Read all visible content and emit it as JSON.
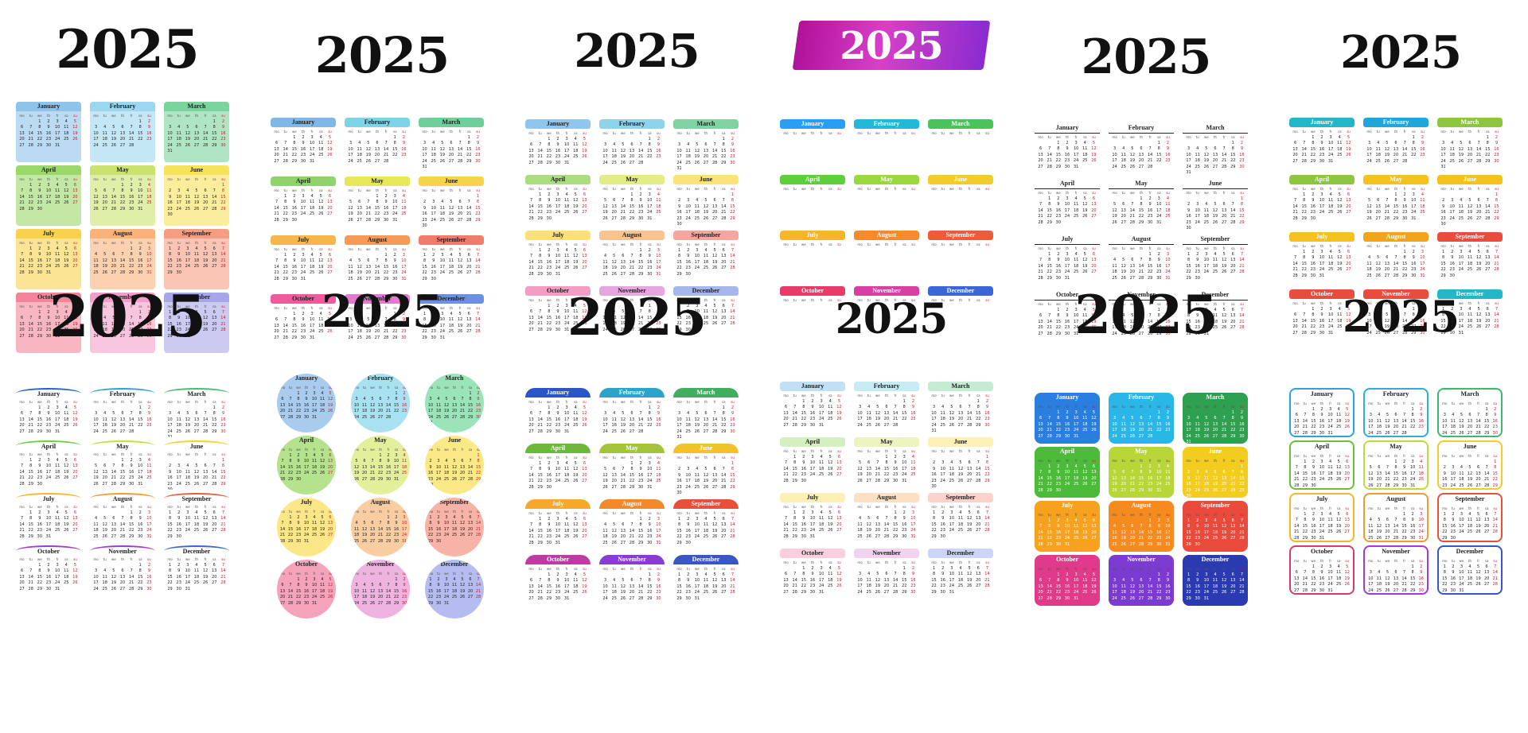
{
  "year": "2025",
  "months": [
    "January",
    "February",
    "March",
    "April",
    "May",
    "June",
    "July",
    "August",
    "September",
    "October",
    "November",
    "December"
  ],
  "weekdays": [
    "mo",
    "tu",
    "we",
    "th",
    "fr",
    "sa",
    "su"
  ],
  "variants": [
    {
      "id": "v1",
      "style": "filled",
      "colors": [
        "#8ec3ea",
        "#9bd7ef",
        "#7bd39d",
        "#9bd86a",
        "#c9e36e",
        "#f7e35a",
        "#f9d24d",
        "#f9b27a",
        "#f59d80",
        "#f2859a",
        "#f39ec8",
        "#a8a6e8"
      ]
    },
    {
      "id": "v2",
      "style": "tabbed",
      "colors": [
        "#7fb8e6",
        "#7fd3e6",
        "#6fcf9b",
        "#8fd36a",
        "#e6e857",
        "#f6d34b",
        "#f5b64c",
        "#f59a57",
        "#f17c6d",
        "#ee5a9b",
        "#e27bd0",
        "#6f8fe0"
      ]
    },
    {
      "id": "v3",
      "style": "brush",
      "colors": [
        "#8fc6ee",
        "#8fd3ea",
        "#7fd3a3",
        "#a9dd7e",
        "#e3ec85",
        "#fae37a",
        "#fbe07a",
        "#f8c38e",
        "#f6a6a0",
        "#f39cc4",
        "#e8a6e0",
        "#a7b6ee"
      ]
    },
    {
      "id": "v4",
      "style": "paint",
      "colors": [
        "#2a9df4",
        "#22b8d8",
        "#4cc35a",
        "#5dcf3a",
        "#9ad83d",
        "#f2cc2b",
        "#f7b627",
        "#f58a2f",
        "#ef5a3a",
        "#ea3a6a",
        "#d83fa0",
        "#3a66d8"
      ]
    },
    {
      "id": "v5",
      "style": "plain",
      "colors": [
        "#222222",
        "#222222",
        "#222222",
        "#222222",
        "#222222",
        "#222222",
        "#222222",
        "#222222",
        "#222222",
        "#222222",
        "#222222",
        "#222222"
      ]
    },
    {
      "id": "v6",
      "style": "banner",
      "colors": [
        "#22b6c8",
        "#22a5d8",
        "#8cc63e",
        "#8cc63e",
        "#f5c11e",
        "#f5c11e",
        "#f5c11e",
        "#f0a51e",
        "#e84c3c",
        "#e84c3c",
        "#e84c3c",
        "#22b6c8"
      ]
    },
    {
      "id": "v7",
      "style": "arc",
      "colors": [
        "#2a5fd8",
        "#2aa4d8",
        "#3fbf6f",
        "#6fcf3a",
        "#c7dd3a",
        "#f2d32b",
        "#f6b62b",
        "#f29a2b",
        "#ee5a3a",
        "#a03ad8",
        "#a03ad8",
        "#3a66d8"
      ]
    },
    {
      "id": "v8",
      "style": "circle",
      "colors": [
        "#a8cbee",
        "#a8e1ef",
        "#9be3b9",
        "#b5e28d",
        "#e3ef9a",
        "#fbe986",
        "#fbe788",
        "#f9cda2",
        "#f7b3a6",
        "#f5a3bb",
        "#eeb3df",
        "#b5bdf0"
      ]
    },
    {
      "id": "v9",
      "style": "dome",
      "colors": [
        "#2a55c8",
        "#2aa5c8",
        "#3fae5f",
        "#6bb83a",
        "#a3c43a",
        "#f2c22b",
        "#f5a82b",
        "#f28a2b",
        "#e8503a",
        "#c03aa3",
        "#8a3ad8",
        "#3a55c8"
      ]
    },
    {
      "id": "v10",
      "style": "pastel-strip",
      "colors": [
        "#bfe0f5",
        "#c7ebf3",
        "#c3ecd2",
        "#d6efc0",
        "#edf3c0",
        "#fdf1b8",
        "#fdf0b5",
        "#fce0c4",
        "#fbd2cc",
        "#f9cfe0",
        "#f1d3ef",
        "#ccd5f6"
      ]
    },
    {
      "id": "v11",
      "style": "folder",
      "colors": [
        "#2a7ee0",
        "#2ab6e6",
        "#2fa04f",
        "#4dbb3a",
        "#b7d637",
        "#f2cc1f",
        "#f7a21f",
        "#f58a1f",
        "#ea4a3c",
        "#e03a8a",
        "#7b3ad0",
        "#2a3ab0"
      ]
    },
    {
      "id": "v12",
      "style": "outline",
      "colors": [
        "#2aa5d8",
        "#2ab0d8",
        "#3fb86f",
        "#6bbf3a",
        "#c3d93a",
        "#f2cc2b",
        "#f7b52b",
        "#f29a2b",
        "#e8503a",
        "#d83a6f",
        "#a03ad8",
        "#3a55c8"
      ]
    }
  ]
}
